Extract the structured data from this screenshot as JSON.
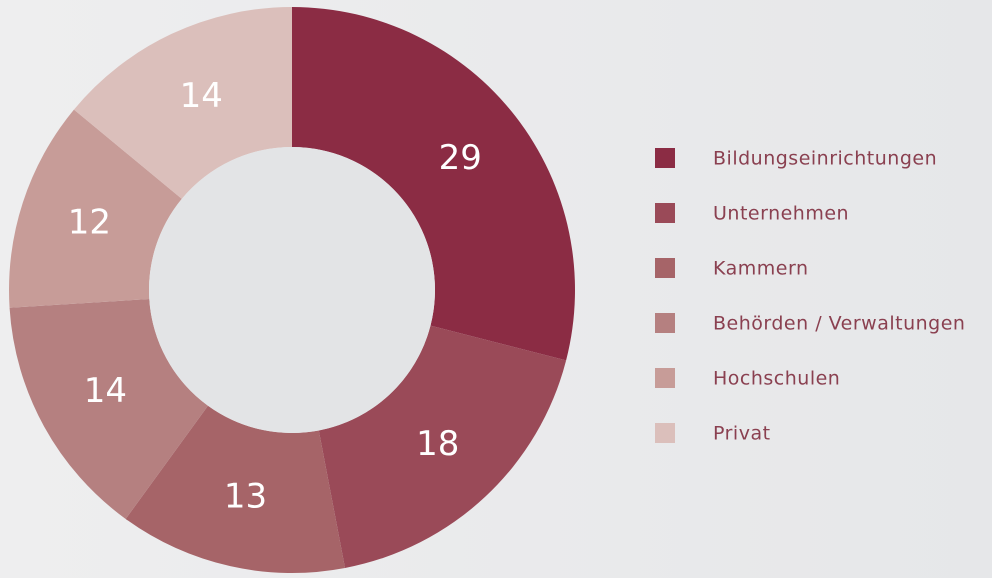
{
  "chart_data": {
    "type": "pie",
    "categories": [
      "Bildungseinrichtungen",
      "Unternehmen",
      "Kammern",
      "Behörden / Verwaltungen",
      "Hochschulen",
      "Privat"
    ],
    "values": [
      29,
      18,
      13,
      14,
      12,
      14
    ],
    "colors": [
      "#8b2c44",
      "#9a4a58",
      "#a66468",
      "#b58080",
      "#c79c98",
      "#dbbfbb"
    ],
    "donut": true
  }
}
